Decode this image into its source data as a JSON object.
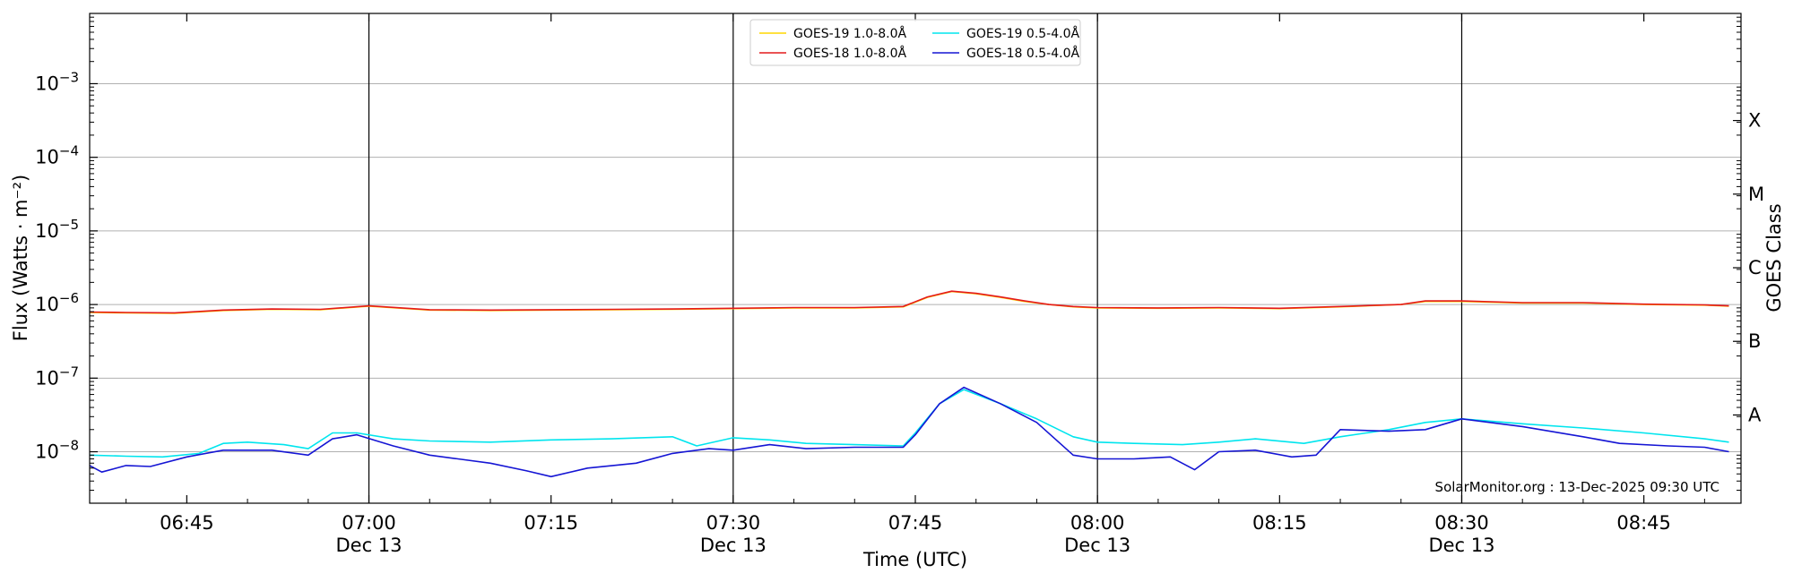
{
  "chart_data": {
    "type": "line",
    "xlabel": "Time (UTC)",
    "ylabel": "Flux (Watts · m⁻²)",
    "ylabel_right": "GOES Class",
    "y_scale": "log",
    "ylim": [
      2e-09,
      0.009
    ],
    "xlim": [
      "06:37",
      "08:53"
    ],
    "x_ticks": [
      {
        "time": "06:45",
        "label": "06:45",
        "sublabel": ""
      },
      {
        "time": "07:00",
        "label": "07:00",
        "sublabel": "Dec 13"
      },
      {
        "time": "07:15",
        "label": "07:15",
        "sublabel": ""
      },
      {
        "time": "07:30",
        "label": "07:30",
        "sublabel": "Dec 13"
      },
      {
        "time": "07:45",
        "label": "07:45",
        "sublabel": ""
      },
      {
        "time": "08:00",
        "label": "08:00",
        "sublabel": "Dec 13"
      },
      {
        "time": "08:15",
        "label": "08:15",
        "sublabel": ""
      },
      {
        "time": "08:30",
        "label": "08:30",
        "sublabel": "Dec 13"
      },
      {
        "time": "08:45",
        "label": "08:45",
        "sublabel": ""
      }
    ],
    "vertical_lines": [
      "07:00",
      "07:30",
      "08:00",
      "08:30"
    ],
    "y_ticks": [
      {
        "value": 1e-08,
        "base": "10",
        "exp": "−8"
      },
      {
        "value": 1e-07,
        "base": "10",
        "exp": "−7"
      },
      {
        "value": 1e-06,
        "base": "10",
        "exp": "−6"
      },
      {
        "value": 1e-05,
        "base": "10",
        "exp": "−5"
      },
      {
        "value": 0.0001,
        "base": "10",
        "exp": "−4"
      },
      {
        "value": 0.001,
        "base": "10",
        "exp": "−3"
      }
    ],
    "goes_classes": [
      {
        "label": "A",
        "value": 3.16e-08
      },
      {
        "label": "B",
        "value": 3.16e-07
      },
      {
        "label": "C",
        "value": 3.16e-06
      },
      {
        "label": "M",
        "value": 3.16e-05
      },
      {
        "label": "X",
        "value": 0.000316
      }
    ],
    "annotation": "SolarMonitor.org : 13-Dec-2025 09:30 UTC",
    "legend_position": "top-center",
    "series": [
      {
        "name": "GOES-19 1.0-8.0Å",
        "color": "#ffd700",
        "x": [
          "06:37",
          "06:40",
          "06:44",
          "06:48",
          "06:52",
          "06:56",
          "07:00",
          "07:05",
          "07:10",
          "07:15",
          "07:20",
          "07:25",
          "07:30",
          "07:35",
          "07:40",
          "07:44",
          "07:46",
          "07:48",
          "07:50",
          "07:52",
          "07:54",
          "07:56",
          "07:58",
          "08:00",
          "08:05",
          "08:10",
          "08:15",
          "08:20",
          "08:25",
          "08:27",
          "08:30",
          "08:35",
          "08:40",
          "08:45",
          "08:50",
          "08:52"
        ],
        "y": [
          7.8e-07,
          7.7e-07,
          7.6e-07,
          8.3e-07,
          8.6e-07,
          8.5e-07,
          9.5e-07,
          8.4e-07,
          8.3e-07,
          8.4e-07,
          8.5e-07,
          8.6e-07,
          8.8e-07,
          9e-07,
          9e-07,
          9.3e-07,
          1.25e-06,
          1.5e-06,
          1.4e-06,
          1.25e-06,
          1.1e-06,
          1e-06,
          9.3e-07,
          9e-07,
          8.9e-07,
          9e-07,
          8.8e-07,
          9.3e-07,
          1e-06,
          1.1e-06,
          1.1e-06,
          1.05e-06,
          1.05e-06,
          1e-06,
          9.8e-07,
          9.5e-07
        ]
      },
      {
        "name": "GOES-18 1.0-8.0Å",
        "color": "#e41a1c",
        "x": [
          "06:37",
          "06:40",
          "06:44",
          "06:48",
          "06:52",
          "06:56",
          "07:00",
          "07:05",
          "07:10",
          "07:15",
          "07:20",
          "07:25",
          "07:30",
          "07:35",
          "07:40",
          "07:44",
          "07:46",
          "07:48",
          "07:50",
          "07:52",
          "07:54",
          "07:56",
          "07:58",
          "08:00",
          "08:05",
          "08:10",
          "08:15",
          "08:20",
          "08:25",
          "08:27",
          "08:30",
          "08:35",
          "08:40",
          "08:45",
          "08:50",
          "08:52"
        ],
        "y": [
          7.9e-07,
          7.8e-07,
          7.7e-07,
          8.4e-07,
          8.7e-07,
          8.6e-07,
          9.6e-07,
          8.5e-07,
          8.4e-07,
          8.5e-07,
          8.6e-07,
          8.7e-07,
          8.9e-07,
          9.1e-07,
          9.1e-07,
          9.4e-07,
          1.27e-06,
          1.52e-06,
          1.42e-06,
          1.27e-06,
          1.12e-06,
          1e-06,
          9.4e-07,
          9.1e-07,
          9e-07,
          9.1e-07,
          8.9e-07,
          9.4e-07,
          1e-06,
          1.12e-06,
          1.12e-06,
          1.06e-06,
          1.06e-06,
          1.01e-06,
          9.9e-07,
          9.6e-07
        ]
      },
      {
        "name": "GOES-19 0.5-4.0Å",
        "color": "#00e5ee",
        "x": [
          "06:37",
          "06:40",
          "06:43",
          "06:46",
          "06:48",
          "06:50",
          "06:53",
          "06:55",
          "06:57",
          "06:59",
          "07:02",
          "07:05",
          "07:10",
          "07:15",
          "07:20",
          "07:25",
          "07:27",
          "07:30",
          "07:33",
          "07:36",
          "07:40",
          "07:44",
          "07:45",
          "07:47",
          "07:49",
          "07:52",
          "07:55",
          "07:58",
          "08:00",
          "08:03",
          "08:07",
          "08:10",
          "08:13",
          "08:17",
          "08:20",
          "08:24",
          "08:27",
          "08:30",
          "08:35",
          "08:40",
          "08:45",
          "08:50",
          "08:52"
        ],
        "y": [
          9e-09,
          8.7e-09,
          8.5e-09,
          9.5e-09,
          1.3e-08,
          1.35e-08,
          1.25e-08,
          1.1e-08,
          1.8e-08,
          1.8e-08,
          1.5e-08,
          1.4e-08,
          1.35e-08,
          1.45e-08,
          1.5e-08,
          1.6e-08,
          1.2e-08,
          1.55e-08,
          1.45e-08,
          1.3e-08,
          1.25e-08,
          1.2e-08,
          1.8e-08,
          4.5e-08,
          7e-08,
          4.5e-08,
          2.8e-08,
          1.6e-08,
          1.35e-08,
          1.3e-08,
          1.25e-08,
          1.35e-08,
          1.5e-08,
          1.3e-08,
          1.6e-08,
          2e-08,
          2.5e-08,
          2.8e-08,
          2.4e-08,
          2.1e-08,
          1.8e-08,
          1.5e-08,
          1.35e-08
        ]
      },
      {
        "name": "GOES-18 0.5-4.0Å",
        "color": "#1515d4",
        "x": [
          "06:37",
          "06:38",
          "06:40",
          "06:42",
          "06:45",
          "06:48",
          "06:52",
          "06:55",
          "06:57",
          "06:59",
          "07:02",
          "07:05",
          "07:10",
          "07:13",
          "07:15",
          "07:18",
          "07:22",
          "07:25",
          "07:28",
          "07:30",
          "07:33",
          "07:36",
          "07:40",
          "07:44",
          "07:45",
          "07:47",
          "07:49",
          "07:52",
          "07:55",
          "07:58",
          "08:00",
          "08:03",
          "08:06",
          "08:08",
          "08:10",
          "08:13",
          "08:16",
          "08:18",
          "08:20",
          "08:24",
          "08:27",
          "08:30",
          "08:35",
          "08:40",
          "08:43",
          "08:47",
          "08:50",
          "08:52"
        ],
        "y": [
          6.5e-09,
          5.3e-09,
          6.5e-09,
          6.3e-09,
          8.5e-09,
          1.05e-08,
          1.05e-08,
          9e-09,
          1.5e-08,
          1.7e-08,
          1.2e-08,
          9e-09,
          7e-09,
          5.5e-09,
          4.6e-09,
          6e-09,
          7e-09,
          9.5e-09,
          1.1e-08,
          1.05e-08,
          1.25e-08,
          1.1e-08,
          1.15e-08,
          1.15e-08,
          1.7e-08,
          4.5e-08,
          7.5e-08,
          4.5e-08,
          2.5e-08,
          9e-09,
          8e-09,
          8e-09,
          8.5e-09,
          5.7e-09,
          1e-08,
          1.05e-08,
          8.5e-09,
          9e-09,
          2e-08,
          1.9e-08,
          2e-08,
          2.8e-08,
          2.2e-08,
          1.6e-08,
          1.3e-08,
          1.2e-08,
          1.15e-08,
          1e-08
        ]
      }
    ]
  }
}
